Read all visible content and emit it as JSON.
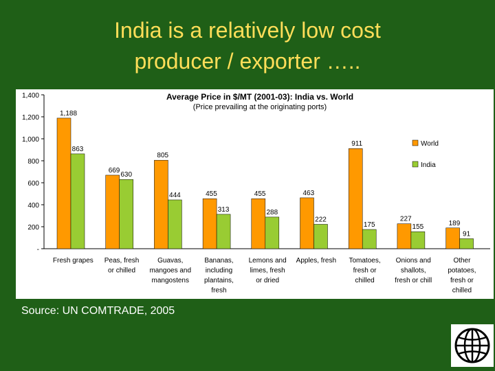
{
  "slide": {
    "title_line1": "India is a relatively low cost",
    "title_line2": "producer / exporter …..",
    "source": "Source: UN COMTRADE, 2005"
  },
  "chart_data": {
    "type": "bar",
    "title": "Average Price in $/MT (2001-03): India vs. World",
    "subtitle": "(Price prevailing at the originating ports)",
    "xlabel": "",
    "ylabel": "",
    "ylim": [
      0,
      1400
    ],
    "yticks": [
      "-",
      "200",
      "400",
      "600",
      "800",
      "1,000",
      "1,200",
      "1,400"
    ],
    "categories": [
      "Fresh grapes",
      "Peas, fresh or chilled",
      "Guavas, mangoes and mangostens",
      "Bananas, including plantains, fresh",
      "Lemons and limes, fresh or dried",
      "Apples, fresh",
      "Tomatoes, fresh or chilled",
      "Onions and shallots, fresh or chill",
      "Other potatoes, fresh or chilled"
    ],
    "category_lines": [
      [
        "Fresh grapes"
      ],
      [
        "Peas, fresh",
        "or chilled"
      ],
      [
        "Guavas,",
        "mangoes and",
        "mangostens"
      ],
      [
        "Bananas,",
        "including",
        "plantains,",
        "fresh"
      ],
      [
        "Lemons and",
        "limes, fresh",
        "or dried"
      ],
      [
        "Apples, fresh"
      ],
      [
        "Tomatoes,",
        "fresh or",
        "chilled"
      ],
      [
        "Onions and",
        "shallots,",
        "fresh or chill"
      ],
      [
        "Other",
        "potatoes,",
        "fresh or",
        "chilled"
      ]
    ],
    "series": [
      {
        "name": "World",
        "color": "#ff9900",
        "values": [
          1188,
          669,
          805,
          455,
          455,
          463,
          911,
          227,
          189
        ],
        "labels": [
          "1,188",
          "669",
          "805",
          "455",
          "455",
          "463",
          "911",
          "227",
          "189"
        ]
      },
      {
        "name": "India",
        "color": "#99cc33",
        "values": [
          863,
          630,
          444,
          313,
          288,
          222,
          175,
          155,
          91
        ],
        "labels": [
          "863",
          "630",
          "444",
          "313",
          "288",
          "222",
          "175",
          "155",
          "91"
        ]
      }
    ],
    "legend_position": "right",
    "grid": false
  },
  "colors": {
    "background": "#1f5f17",
    "title": "#ffde59",
    "world": "#ff9900",
    "india": "#99cc33"
  },
  "logo": {
    "icon": "globe-icon"
  }
}
